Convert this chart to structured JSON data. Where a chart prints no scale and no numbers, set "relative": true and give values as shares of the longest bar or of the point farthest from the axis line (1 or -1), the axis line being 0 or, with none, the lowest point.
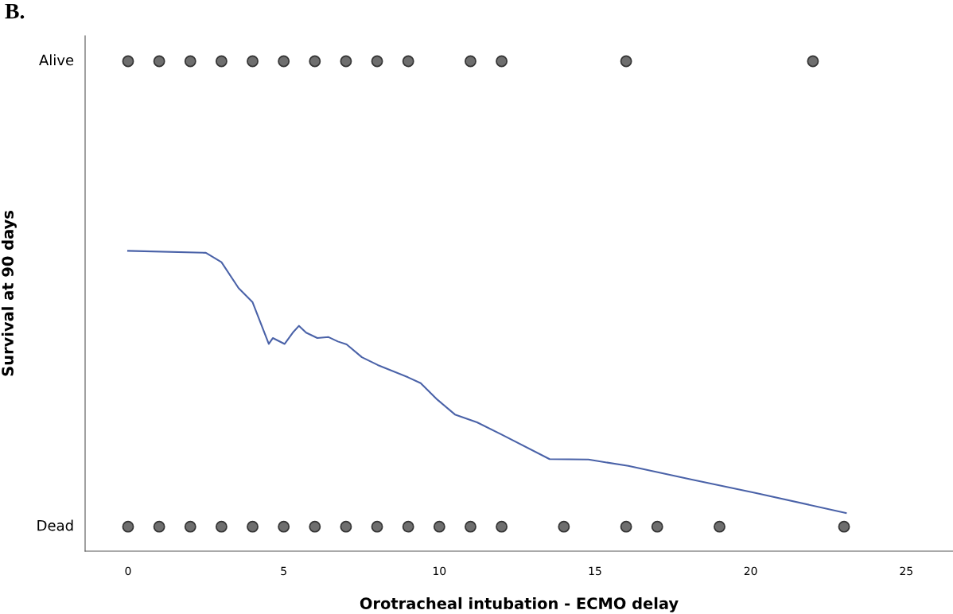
{
  "chart_data": {
    "type": "scatter",
    "title": "B.",
    "xlabel": "Orotracheal intubation - ECMO delay",
    "ylabel": "Survival at 90 days",
    "xlim": [
      -1.38,
      26.5
    ],
    "xticks": [
      0,
      5,
      10,
      15,
      20,
      25
    ],
    "relative": true,
    "grid": false,
    "marker": "circle",
    "annotations": [
      "Alive",
      "Dead"
    ],
    "series": [
      {
        "color": "#6e6e6e",
        "x": [
          0,
          1,
          2,
          3,
          4,
          5,
          6,
          7,
          8,
          9,
          11,
          12,
          16,
          22
        ],
        "values": [
          1,
          1,
          1,
          1,
          1,
          1,
          1,
          1,
          1,
          1,
          1,
          1,
          1,
          1
        ]
      },
      {
        "color": "#6e6e6e",
        "x": [
          0,
          1,
          2,
          3,
          4,
          5,
          6,
          7,
          8,
          9,
          10,
          11,
          12,
          14,
          16,
          17,
          19,
          23
        ],
        "values": [
          0.05,
          0.05,
          0.05,
          0.05,
          0.05,
          0.05,
          0.05,
          0.05,
          0.05,
          0.05,
          0.05,
          0.05,
          0.05,
          0.05,
          0.05,
          0.05,
          0.05,
          0.05
        ]
      },
      {
        "type": "line",
        "color": "#4a62a8",
        "marker": "none",
        "line_style": "solid",
        "x": [
          0,
          2.5,
          3.0,
          3.55,
          4.0,
          4.52,
          4.65,
          5.03,
          5.29,
          5.49,
          5.72,
          6.08,
          6.44,
          6.74,
          7.02,
          7.51,
          8.02,
          8.99,
          9.4,
          9.94,
          10.5,
          11.21,
          12.0,
          13.54,
          14.79,
          16.07,
          18.11,
          20.15,
          23.06
        ],
        "values": [
          0.613,
          0.609,
          0.59,
          0.537,
          0.508,
          0.423,
          0.435,
          0.423,
          0.446,
          0.46,
          0.446,
          0.435,
          0.437,
          0.428,
          0.422,
          0.396,
          0.38,
          0.355,
          0.343,
          0.309,
          0.279,
          0.263,
          0.238,
          0.188,
          0.187,
          0.174,
          0.146,
          0.119,
          0.078
        ]
      }
    ]
  }
}
